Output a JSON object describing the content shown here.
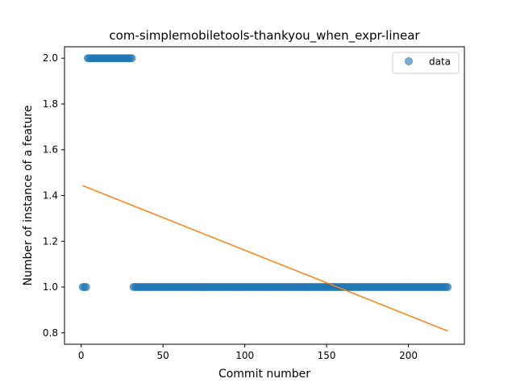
{
  "chart_data": {
    "type": "scatter",
    "title": "com-simplemobiletools-thankyou_when_expr-linear",
    "xlabel": "Commit number",
    "ylabel": "Number of instance of a feature",
    "xlim": [
      -10.2,
      234.2
    ],
    "ylim": [
      0.75,
      2.05
    ],
    "xticks": [
      0,
      50,
      100,
      150,
      200
    ],
    "yticks": [
      0.8,
      1.0,
      1.2,
      1.4,
      1.6,
      1.8,
      2.0
    ],
    "ytick_labels": [
      "0.8",
      "1.0",
      "1.2",
      "1.4",
      "1.6",
      "1.8",
      "2.0"
    ],
    "grid": false,
    "legend_position": "top-right",
    "legend": [
      "data"
    ],
    "series": [
      {
        "name": "data",
        "kind": "scatter",
        "color": "#1f77b4",
        "segments": [
          {
            "x_start": 1,
            "x_end": 3,
            "y": 1.0
          },
          {
            "x_start": 4,
            "x_end": 31,
            "y": 2.0
          },
          {
            "x_start": 32,
            "x_end": 224,
            "y": 1.0
          }
        ]
      },
      {
        "kind": "line",
        "color": "#ff7f0e",
        "x": [
          1,
          224
        ],
        "y": [
          1.443,
          0.808
        ]
      }
    ]
  }
}
